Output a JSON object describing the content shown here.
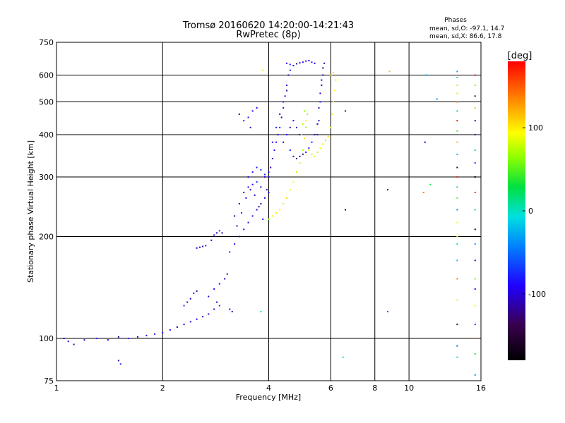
{
  "chart_data": {
    "type": "scatter",
    "title": "Tromsø 20160620 14:20:00-14:21:43",
    "subtitle": "RwPretec (8p)",
    "phases_box": {
      "heading": "Phases",
      "line1": "mean, sd,O: -97.1, 14.7",
      "line2": "mean, sd,X: 86.6, 17.8"
    },
    "xlabel": "Frequency [MHz]",
    "ylabel": "Stationary phase Virtual Height [km]",
    "x_scale": "log",
    "y_scale": "log",
    "xlim": [
      1,
      16
    ],
    "ylim": [
      75,
      750
    ],
    "x_ticks": [
      1,
      2,
      4,
      6,
      8,
      10,
      16
    ],
    "x_tick_labels": [
      "1",
      "2",
      "4",
      "6",
      "8",
      "10",
      "16"
    ],
    "y_ticks": [
      75,
      100,
      200,
      300,
      400,
      500,
      600,
      750
    ],
    "y_tick_labels": [
      "75",
      "100",
      "200",
      "300",
      "400",
      "500",
      "600",
      "750"
    ],
    "grid": true,
    "colorbar": {
      "label": "[deg]",
      "min": -180,
      "max": 180,
      "ticks": [
        100,
        0,
        -100
      ],
      "tick_labels": [
        "100",
        "0",
        "-100"
      ]
    },
    "series": [
      {
        "mode": "O",
        "phase_deg": -97,
        "points": [
          [
            1.05,
            100
          ],
          [
            1.08,
            98
          ],
          [
            1.12,
            96
          ],
          [
            1.2,
            99
          ],
          [
            1.3,
            100
          ],
          [
            1.4,
            99
          ],
          [
            1.5,
            101
          ],
          [
            1.6,
            100
          ],
          [
            1.7,
            101
          ],
          [
            1.8,
            102
          ],
          [
            1.9,
            103
          ],
          [
            2.0,
            104
          ],
          [
            2.1,
            106
          ],
          [
            2.2,
            108
          ],
          [
            2.3,
            110
          ],
          [
            2.4,
            112
          ],
          [
            2.5,
            114
          ],
          [
            2.6,
            116
          ],
          [
            2.7,
            118
          ],
          [
            2.8,
            122
          ],
          [
            2.85,
            128
          ],
          [
            1.5,
            86
          ],
          [
            1.52,
            84
          ],
          [
            2.3,
            125
          ],
          [
            2.35,
            128
          ],
          [
            2.4,
            131
          ],
          [
            2.45,
            136
          ],
          [
            2.5,
            138
          ],
          [
            2.7,
            133
          ],
          [
            2.8,
            140
          ],
          [
            2.9,
            145
          ],
          [
            3.0,
            150
          ],
          [
            3.05,
            155
          ],
          [
            2.9,
            125
          ],
          [
            3.1,
            122
          ],
          [
            3.15,
            120
          ],
          [
            2.5,
            185
          ],
          [
            2.55,
            186
          ],
          [
            2.6,
            187
          ],
          [
            2.65,
            188
          ],
          [
            2.75,
            195
          ],
          [
            2.8,
            202
          ],
          [
            2.85,
            205
          ],
          [
            2.9,
            208
          ],
          [
            2.95,
            205
          ],
          [
            3.1,
            180
          ],
          [
            3.2,
            190
          ],
          [
            3.3,
            200
          ],
          [
            3.4,
            210
          ],
          [
            3.5,
            220
          ],
          [
            3.6,
            230
          ],
          [
            3.7,
            240
          ],
          [
            3.8,
            250
          ],
          [
            3.9,
            260
          ],
          [
            4.0,
            270
          ],
          [
            3.2,
            230
          ],
          [
            3.3,
            250
          ],
          [
            3.4,
            270
          ],
          [
            3.5,
            280
          ],
          [
            3.6,
            285
          ],
          [
            3.7,
            290
          ],
          [
            3.8,
            280
          ],
          [
            3.9,
            300
          ],
          [
            4.0,
            310
          ],
          [
            3.25,
            215
          ],
          [
            3.35,
            235
          ],
          [
            3.45,
            260
          ],
          [
            3.55,
            275
          ],
          [
            3.65,
            265
          ],
          [
            3.75,
            245
          ],
          [
            3.85,
            225
          ],
          [
            3.95,
            275
          ],
          [
            3.5,
            300
          ],
          [
            3.6,
            310
          ],
          [
            3.7,
            320
          ],
          [
            3.8,
            315
          ],
          [
            3.9,
            305
          ],
          [
            3.4,
            440
          ],
          [
            3.5,
            450
          ],
          [
            3.6,
            470
          ],
          [
            3.7,
            480
          ],
          [
            3.3,
            460
          ],
          [
            3.55,
            420
          ],
          [
            4.0,
            300
          ],
          [
            4.05,
            320
          ],
          [
            4.1,
            340
          ],
          [
            4.15,
            360
          ],
          [
            4.2,
            380
          ],
          [
            4.25,
            400
          ],
          [
            4.3,
            420
          ],
          [
            4.35,
            450
          ],
          [
            4.4,
            480
          ],
          [
            4.45,
            520
          ],
          [
            4.5,
            560
          ],
          [
            4.55,
            600
          ],
          [
            4.6,
            620
          ],
          [
            4.1,
            380
          ],
          [
            4.2,
            420
          ],
          [
            4.3,
            460
          ],
          [
            4.4,
            500
          ],
          [
            4.5,
            540
          ],
          [
            4.5,
            650
          ],
          [
            4.6,
            645
          ],
          [
            4.7,
            640
          ],
          [
            4.8,
            648
          ],
          [
            4.9,
            652
          ],
          [
            5.0,
            655
          ],
          [
            5.1,
            660
          ],
          [
            5.2,
            662
          ],
          [
            5.3,
            655
          ],
          [
            5.4,
            650
          ],
          [
            4.6,
            360
          ],
          [
            4.7,
            345
          ],
          [
            4.8,
            340
          ],
          [
            4.9,
            345
          ],
          [
            5.0,
            350
          ],
          [
            5.1,
            355
          ],
          [
            5.2,
            365
          ],
          [
            5.3,
            380
          ],
          [
            5.4,
            400
          ],
          [
            5.5,
            430
          ],
          [
            5.55,
            480
          ],
          [
            5.6,
            530
          ],
          [
            5.65,
            580
          ],
          [
            5.7,
            630
          ],
          [
            5.75,
            650
          ],
          [
            5.5,
            400
          ],
          [
            5.55,
            440
          ],
          [
            5.6,
            500
          ],
          [
            5.65,
            560
          ],
          [
            5.7,
            600
          ],
          [
            4.4,
            380
          ],
          [
            4.5,
            400
          ],
          [
            4.6,
            420
          ],
          [
            4.7,
            440
          ],
          [
            4.8,
            420
          ],
          [
            4.9,
            400
          ]
        ]
      },
      {
        "mode": "X",
        "phase_deg": 87,
        "points": [
          [
            3.85,
            620
          ],
          [
            4.0,
            225
          ],
          [
            4.1,
            230
          ],
          [
            4.2,
            235
          ],
          [
            4.3,
            240
          ],
          [
            4.4,
            250
          ],
          [
            4.5,
            260
          ],
          [
            4.6,
            275
          ],
          [
            4.7,
            290
          ],
          [
            4.8,
            310
          ],
          [
            4.9,
            330
          ],
          [
            5.0,
            360
          ],
          [
            5.05,
            390
          ],
          [
            5.1,
            420
          ],
          [
            5.15,
            460
          ],
          [
            4.95,
            400
          ],
          [
            5.0,
            430
          ],
          [
            5.05,
            470
          ],
          [
            5.1,
            440
          ],
          [
            5.2,
            360
          ],
          [
            5.3,
            350
          ],
          [
            5.4,
            345
          ],
          [
            5.5,
            355
          ],
          [
            5.6,
            365
          ],
          [
            5.7,
            375
          ],
          [
            5.8,
            385
          ],
          [
            5.9,
            395
          ],
          [
            6.0,
            420
          ],
          [
            6.05,
            460
          ],
          [
            6.1,
            500
          ],
          [
            6.15,
            540
          ],
          [
            6.2,
            580
          ],
          [
            6.0,
            600
          ],
          [
            6.1,
            610
          ]
        ]
      },
      {
        "mode": "interference",
        "phase_deg": null,
        "points": [
          [
            13.7,
            615
          ],
          [
            13.7,
            590
          ],
          [
            13.7,
            560
          ],
          [
            13.7,
            530
          ],
          [
            13.7,
            500
          ],
          [
            13.7,
            470
          ],
          [
            13.7,
            440
          ],
          [
            13.7,
            410
          ],
          [
            13.7,
            380
          ],
          [
            13.7,
            350
          ],
          [
            13.7,
            320
          ],
          [
            13.7,
            300
          ],
          [
            13.7,
            280
          ],
          [
            13.7,
            260
          ],
          [
            13.7,
            240
          ],
          [
            13.7,
            220
          ],
          [
            13.7,
            200
          ],
          [
            13.7,
            190
          ],
          [
            13.7,
            170
          ],
          [
            13.7,
            150
          ],
          [
            13.7,
            130
          ],
          [
            13.7,
            110
          ],
          [
            13.7,
            95
          ],
          [
            13.7,
            88
          ],
          [
            15.4,
            600
          ],
          [
            15.4,
            560
          ],
          [
            15.4,
            520
          ],
          [
            15.4,
            480
          ],
          [
            15.4,
            440
          ],
          [
            15.4,
            400
          ],
          [
            15.4,
            360
          ],
          [
            15.4,
            330
          ],
          [
            15.4,
            300
          ],
          [
            15.4,
            270
          ],
          [
            15.4,
            240
          ],
          [
            15.4,
            210
          ],
          [
            15.4,
            190
          ],
          [
            15.4,
            170
          ],
          [
            15.4,
            150
          ],
          [
            15.4,
            140
          ],
          [
            15.4,
            125
          ],
          [
            15.4,
            110
          ],
          [
            15.4,
            100
          ],
          [
            15.4,
            90
          ],
          [
            15.4,
            78
          ],
          [
            8.8,
            615
          ],
          [
            8.7,
            275
          ],
          [
            8.7,
            120
          ],
          [
            11.2,
            600
          ],
          [
            11.0,
            270
          ],
          [
            11.5,
            285
          ],
          [
            6.6,
            240
          ],
          [
            6.6,
            470
          ],
          [
            6.5,
            88
          ],
          [
            11.1,
            380
          ],
          [
            12.0,
            510
          ],
          [
            3.8,
            120
          ]
        ]
      }
    ]
  }
}
